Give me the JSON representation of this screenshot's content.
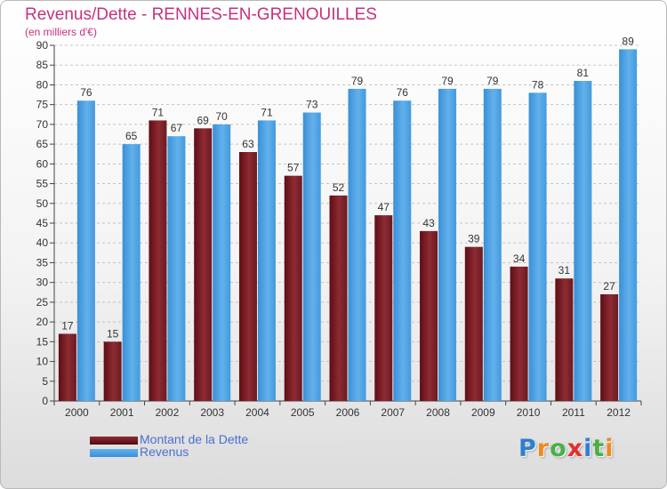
{
  "chart_data": {
    "type": "bar",
    "title": "Revenus/Dette - RENNES-EN-GRENOUILLES",
    "subtitle": "(en milliers d'€)",
    "categories": [
      "2000",
      "2001",
      "2002",
      "2003",
      "2004",
      "2005",
      "2006",
      "2007",
      "2008",
      "2009",
      "2010",
      "2011",
      "2012"
    ],
    "series": [
      {
        "name": "Montant de la Dette",
        "values": [
          17,
          15,
          71,
          69,
          63,
          57,
          52,
          47,
          43,
          39,
          34,
          31,
          27
        ],
        "color": "#7a1c24"
      },
      {
        "name": "Revenus",
        "values": [
          76,
          65,
          67,
          70,
          71,
          73,
          79,
          76,
          79,
          79,
          78,
          81,
          89
        ],
        "color": "#4a9ee0"
      }
    ],
    "ylim": [
      0,
      90
    ],
    "yticks": [
      0,
      5,
      10,
      15,
      20,
      25,
      30,
      35,
      40,
      45,
      50,
      55,
      60,
      65,
      70,
      75,
      80,
      85,
      90
    ],
    "grid": true,
    "legend_position": "bottom-left",
    "label_color": "#333333"
  },
  "logo": {
    "letters": [
      {
        "ch": "P",
        "color": "#2f7fd0"
      },
      {
        "ch": "r",
        "color": "#ee8b1f"
      },
      {
        "ch": "o",
        "color": "#49b047"
      },
      {
        "ch": "x",
        "color": "#e0302e"
      },
      {
        "ch": "i",
        "color": "#2f7fd0"
      },
      {
        "ch": "t",
        "color": "#49b047"
      },
      {
        "ch": "i",
        "color": "#ee8b1f"
      }
    ]
  }
}
